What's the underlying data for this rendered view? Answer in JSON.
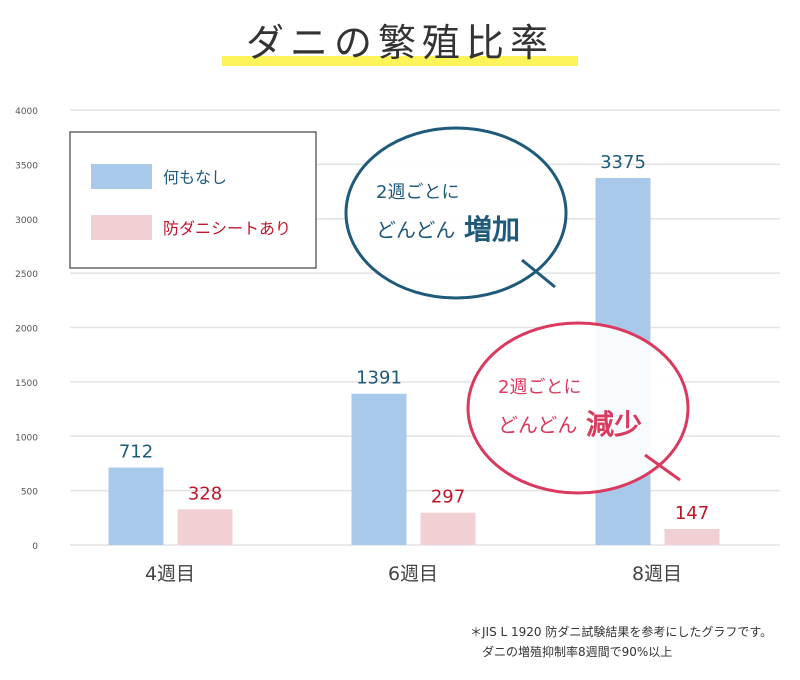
{
  "chart_data": {
    "type": "bar",
    "title": "ダニの繁殖比率",
    "categories": [
      "4週目",
      "6週目",
      "8週目"
    ],
    "series": [
      {
        "name": "何もなし",
        "values": [
          712,
          1391,
          3375
        ],
        "color": "#a8c9ea",
        "label_color": "#1f5a7a"
      },
      {
        "name": "防ダニシートあり",
        "values": [
          328,
          297,
          147
        ],
        "color": "#f0d0d2",
        "label_color": "#c0152a"
      }
    ],
    "ylim": [
      0,
      4000
    ],
    "yticks": [
      0,
      500,
      1000,
      1500,
      2000,
      2500,
      3000,
      3500,
      4000
    ],
    "grid": true,
    "legend": "top-left",
    "annotations": [
      {
        "line1": "2週ごとに",
        "line2": "どんどん",
        "emph": "増加",
        "color": "#1f5a7a"
      },
      {
        "line1": "2週ごとに",
        "line2": "どんどん",
        "emph": "減少",
        "color": "#d93a5e"
      }
    ]
  },
  "notes": [
    "＊JIS L 1920 防ダニ試験結果を参考にしたグラフです。",
    "ダニの増殖抑制率8週間で90%以上"
  ]
}
